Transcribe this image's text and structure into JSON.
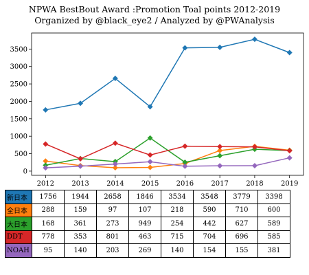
{
  "chart_data": {
    "type": "line",
    "title_line1": "NPWA BestBout Award :Promotion Toal points 2012-2019",
    "title_line2": "Organized by @black_eye2 / Analyzed by @PWAnalysis",
    "x": [
      2012,
      2013,
      2014,
      2015,
      2016,
      2017,
      2018,
      2019
    ],
    "xlim": [
      2011.6,
      2019.4
    ],
    "ylim": [
      -120,
      3960
    ],
    "yticks": [
      0,
      500,
      1000,
      1500,
      2000,
      2500,
      3000,
      3500
    ],
    "grid": false,
    "legend": "table-below",
    "series": [
      {
        "name": "新日本",
        "color": "#1f77b4",
        "values": [
          1756,
          1944,
          2658,
          1846,
          3534,
          3548,
          3779,
          3398
        ]
      },
      {
        "name": "全日本",
        "color": "#ff7f0e",
        "values": [
          288,
          159,
          97,
          107,
          218,
          590,
          710,
          600
        ]
      },
      {
        "name": "大日本",
        "color": "#2ca02c",
        "values": [
          168,
          361,
          273,
          949,
          254,
          442,
          627,
          589
        ]
      },
      {
        "name": "DDT",
        "color": "#d62728",
        "values": [
          778,
          353,
          801,
          463,
          715,
          704,
          696,
          585
        ]
      },
      {
        "name": "NOAH",
        "color": "#9467bd",
        "values": [
          95,
          140,
          203,
          269,
          140,
          154,
          155,
          381
        ]
      }
    ]
  }
}
